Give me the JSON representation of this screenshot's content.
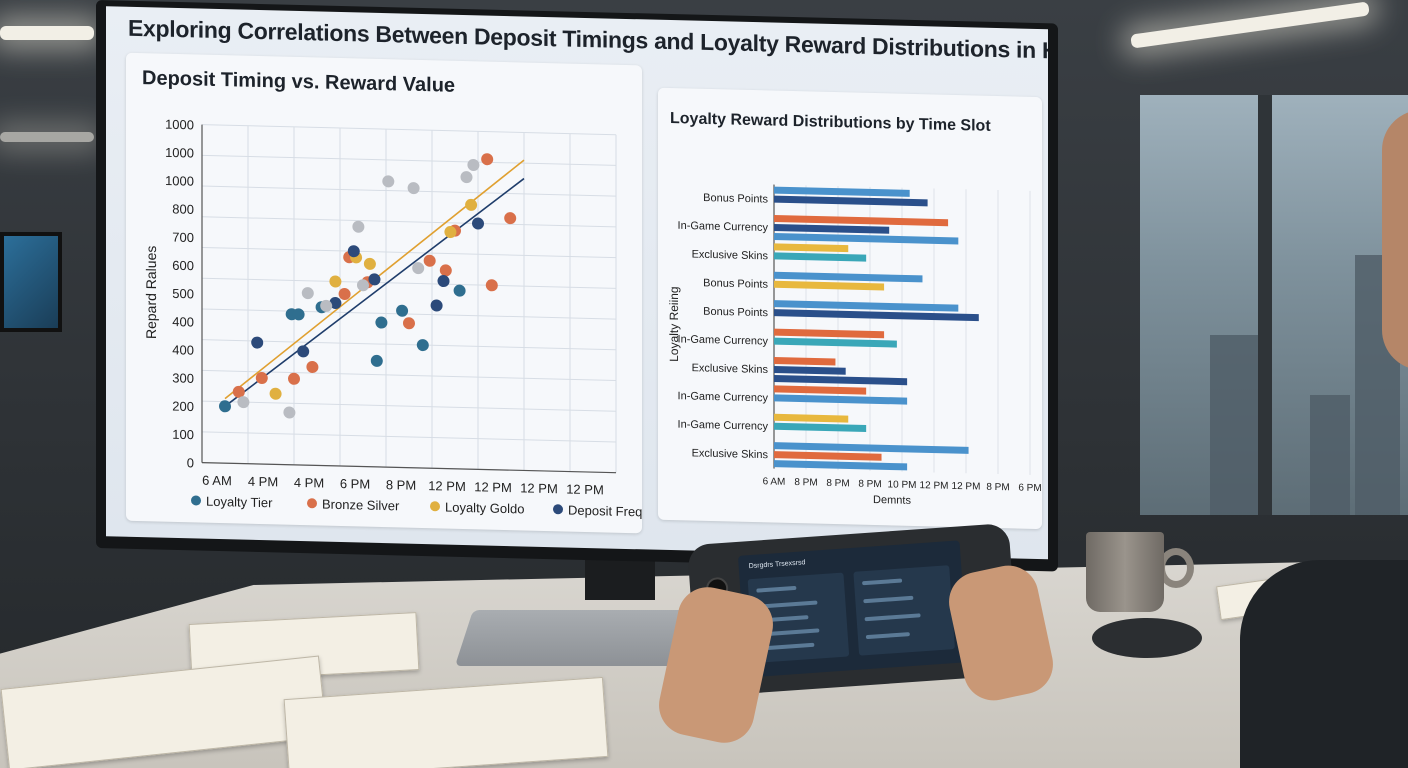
{
  "page": {
    "title": "Exploring Correlations Between Deposit Timings and Loyalty Reward Distributions in Handheld Gaming E."
  },
  "colors": {
    "loyalty_tier": "#2f6e8f",
    "bronze_silver": "#d9704a",
    "loyalty_gold": "#e0b040",
    "deposit_frequency": "#2c4a7a",
    "grey_point": "#b9bcc2",
    "trend_gold": "#e0a030",
    "trend_navy": "#1f3d6b",
    "bar_blue": "#4a92cc",
    "bar_navy": "#2a4f8a",
    "bar_orange": "#e06a3e",
    "bar_teal": "#3aa7b8",
    "bar_gold": "#e8b83e"
  },
  "chart_data": [
    {
      "type": "scatter",
      "title": "Deposit Timing vs. Reward Value",
      "xlabel": "",
      "ylabel": "Repard Ralues",
      "x_ticks": [
        "6 AM",
        "4 PM",
        "4 PM",
        "6 PM",
        "8 PM",
        "12 PM",
        "12 PM",
        "12 PM",
        "12 PM"
      ],
      "y_ticks": [
        "0",
        "100",
        "200",
        "300",
        "400",
        "400",
        "500",
        "600",
        "700",
        "800",
        "1000",
        "1000",
        "1000"
      ],
      "grid": true,
      "legend_position": "bottom",
      "legend": [
        "Loyalty Tier",
        "Bronze Silver",
        "Loyalty Goldo",
        "Deposit Frequency"
      ],
      "series": [
        {
          "name": "Loyalty Tier",
          "points": [
            [
              0.5,
              185
            ],
            [
              1.95,
              490
            ],
            [
              2.1,
              490
            ],
            [
              2.6,
              515
            ],
            [
              3.8,
              345
            ],
            [
              3.9,
              470
            ],
            [
              4.35,
              510
            ],
            [
              4.8,
              400
            ],
            [
              5.6,
              580
            ]
          ]
        },
        {
          "name": "Bronze Silver",
          "points": [
            [
              0.8,
              233
            ],
            [
              1.3,
              280
            ],
            [
              2.0,
              280
            ],
            [
              2.4,
              320
            ],
            [
              3.1,
              560
            ],
            [
              3.2,
              680
            ],
            [
              3.6,
              600
            ],
            [
              4.5,
              470
            ],
            [
              4.95,
              675
            ],
            [
              5.3,
              645
            ],
            [
              5.5,
              775
            ],
            [
              6.2,
              1010
            ],
            [
              6.3,
              600
            ],
            [
              6.7,
              820
            ]
          ]
        },
        {
          "name": "Loyalty Goldo",
          "points": [
            [
              1.6,
              230
            ],
            [
              2.9,
              600
            ],
            [
              3.35,
              680
            ],
            [
              3.65,
              660
            ],
            [
              5.4,
              770
            ],
            [
              5.85,
              860
            ]
          ]
        },
        {
          "name": "Deposit Frequency",
          "points": [
            [
              1.2,
              395
            ],
            [
              2.2,
              370
            ],
            [
              2.9,
              530
            ],
            [
              3.3,
              700
            ],
            [
              3.75,
              610
            ],
            [
              5.1,
              530
            ],
            [
              5.25,
              610
            ],
            [
              6.0,
              800
            ]
          ]
        },
        {
          "name": "",
          "points": [
            [
              0.9,
              200
            ],
            [
              1.9,
              170
            ],
            [
              2.3,
              560
            ],
            [
              2.7,
              520
            ],
            [
              3.4,
              780
            ],
            [
              3.5,
              590
            ],
            [
              4.05,
              930
            ],
            [
              4.6,
              910
            ],
            [
              4.7,
              650
            ],
            [
              5.75,
              950
            ],
            [
              5.9,
              990
            ]
          ]
        }
      ],
      "trend_lines": [
        {
          "name": "",
          "from": [
            0.5,
            210
          ],
          "to": [
            7.0,
            1010
          ]
        },
        {
          "name": "",
          "from": [
            0.5,
            185
          ],
          "to": [
            7.0,
            950
          ]
        }
      ]
    },
    {
      "type": "bar",
      "orientation": "horizontal",
      "title": "Loyalty Reward Distributions by Time Slot",
      "xlabel": "Demnts",
      "ylabel": "Loyalty Reiing",
      "x_ticks": [
        "6 AM",
        "8 PM",
        "8 PM",
        "8 PM",
        "10 PM",
        "12 PM",
        "12 PM",
        "8 PM",
        "6 PM"
      ],
      "categories": [
        "Bonus Points",
        "In-Game Currency",
        "Exclusive Skins",
        "Bonus Points",
        "Bonus Points",
        "In-Game Currency",
        "Exclusive Skins",
        "In-Game Currency",
        "In-Game Currency",
        "Exclusive Skins"
      ],
      "legend_position": "none",
      "groups": [
        {
          "label": "Bonus Points",
          "bars": [
            {
              "color": "bar_blue",
              "value": 5.3
            },
            {
              "color": "bar_navy",
              "value": 6.0
            }
          ]
        },
        {
          "label": "In-Game Currency",
          "bars": [
            {
              "color": "bar_orange",
              "value": 6.8
            },
            {
              "color": "bar_navy",
              "value": 4.5
            },
            {
              "color": "bar_blue",
              "value": 7.2
            }
          ]
        },
        {
          "label": "Exclusive Skins",
          "bars": [
            {
              "color": "bar_gold",
              "value": 2.9
            },
            {
              "color": "bar_teal",
              "value": 3.6
            }
          ]
        },
        {
          "label": "Bonus Points",
          "bars": [
            {
              "color": "bar_blue",
              "value": 5.8
            },
            {
              "color": "bar_gold",
              "value": 4.3
            }
          ]
        },
        {
          "label": "Bonus Points",
          "bars": [
            {
              "color": "bar_blue",
              "value": 7.2
            },
            {
              "color": "bar_navy",
              "value": 8.0
            }
          ]
        },
        {
          "label": "In-Game Currency",
          "bars": [
            {
              "color": "bar_orange",
              "value": 4.3
            },
            {
              "color": "bar_teal",
              "value": 4.8
            }
          ]
        },
        {
          "label": "Exclusive Skins",
          "bars": [
            {
              "color": "bar_orange",
              "value": 2.4
            },
            {
              "color": "bar_navy",
              "value": 2.8
            },
            {
              "color": "bar_navy",
              "value": 5.2
            }
          ]
        },
        {
          "label": "In-Game Currency",
          "bars": [
            {
              "color": "bar_orange",
              "value": 3.6
            },
            {
              "color": "bar_blue",
              "value": 5.2
            }
          ]
        },
        {
          "label": "In-Game Currency",
          "bars": [
            {
              "color": "bar_gold",
              "value": 2.9
            },
            {
              "color": "bar_teal",
              "value": 3.6
            }
          ]
        },
        {
          "label": "Exclusive Skins",
          "bars": [
            {
              "color": "bar_blue",
              "value": 7.6
            },
            {
              "color": "bar_orange",
              "value": 4.2
            },
            {
              "color": "bar_blue",
              "value": 5.2
            }
          ]
        }
      ],
      "xlim": [
        0,
        10
      ],
      "grid": true
    }
  ],
  "handheld": {
    "title": "Dsrgdrs Trsexsrsd"
  }
}
